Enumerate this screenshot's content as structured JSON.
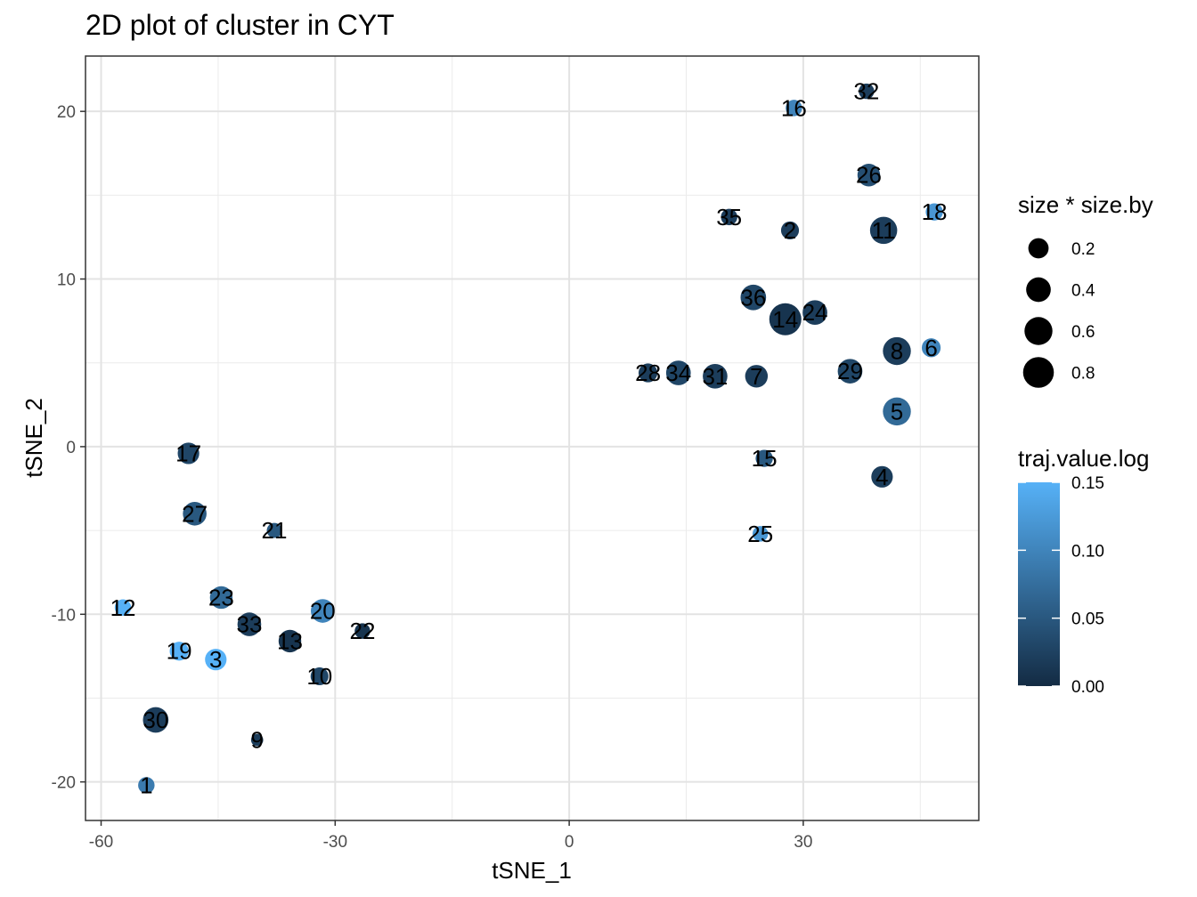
{
  "chart_data": {
    "type": "scatter",
    "title": "2D plot of cluster in CYT",
    "xlabel": "tSNE_1",
    "ylabel": "tSNE_2",
    "xlim": [
      -62,
      52.5
    ],
    "ylim": [
      -22.3,
      23.3
    ],
    "x_ticks": [
      -60,
      -30,
      0,
      30
    ],
    "y_ticks": [
      -20,
      -10,
      0,
      10,
      20
    ],
    "x_minor_ticks": [
      -45,
      -15,
      15,
      45
    ],
    "y_minor_ticks": [
      -15,
      -5,
      5,
      15
    ],
    "grid": true,
    "legend_position": "right",
    "color_scale": {
      "low": "#132B43",
      "high": "#56B1F7"
    },
    "size_legend": {
      "title": "size * size.by",
      "values": [
        0.2,
        0.4,
        0.6,
        0.8
      ],
      "labels": [
        "0.2",
        "0.4",
        "0.6",
        "0.8"
      ]
    },
    "color_legend": {
      "title": "traj.value.log",
      "min": 0,
      "max": 0.15,
      "values": [
        0,
        0.05,
        0.1,
        0.15
      ],
      "labels": [
        "0.00",
        "0.05",
        "0.10",
        "0.15"
      ]
    },
    "points": [
      {
        "label": "1",
        "x": -54.2,
        "y": -20.2,
        "size": 0.08,
        "color_value": 0.09
      },
      {
        "label": "2",
        "x": 28.3,
        "y": 12.9,
        "size": 0.12,
        "color_value": 0.02
      },
      {
        "label": "3",
        "x": -45.3,
        "y": -12.7,
        "size": 0.25,
        "color_value": 0.15
      },
      {
        "label": "4",
        "x": 40.1,
        "y": -1.8,
        "size": 0.25,
        "color_value": 0.02
      },
      {
        "label": "5",
        "x": 42.0,
        "y": 2.1,
        "size": 0.6,
        "color_value": 0.07
      },
      {
        "label": "6",
        "x": 46.4,
        "y": 5.9,
        "size": 0.15,
        "color_value": 0.1
      },
      {
        "label": "7",
        "x": 24.0,
        "y": 4.2,
        "size": 0.3,
        "color_value": 0.02
      },
      {
        "label": "8",
        "x": 42.0,
        "y": 5.7,
        "size": 0.6,
        "color_value": 0.02
      },
      {
        "label": "9",
        "x": -40.0,
        "y": -17.5,
        "size": 0.01,
        "color_value": 0.02
      },
      {
        "label": "10",
        "x": -32.0,
        "y": -13.7,
        "size": 0.12,
        "color_value": 0.03
      },
      {
        "label": "11",
        "x": 40.3,
        "y": 12.9,
        "size": 0.55,
        "color_value": 0.02
      },
      {
        "label": "12",
        "x": -57.2,
        "y": -9.6,
        "size": 0.08,
        "color_value": 0.15
      },
      {
        "label": "13",
        "x": -35.8,
        "y": -11.6,
        "size": 0.3,
        "color_value": 0.01
      },
      {
        "label": "14",
        "x": 27.7,
        "y": 7.6,
        "size": 0.9,
        "color_value": 0.01
      },
      {
        "label": "15",
        "x": 25.0,
        "y": -0.7,
        "size": 0.1,
        "color_value": 0.05
      },
      {
        "label": "16",
        "x": 28.8,
        "y": 20.2,
        "size": 0.08,
        "color_value": 0.1
      },
      {
        "label": "17",
        "x": -48.8,
        "y": -0.4,
        "size": 0.25,
        "color_value": 0.03
      },
      {
        "label": "18",
        "x": 46.8,
        "y": 14.0,
        "size": 0.1,
        "color_value": 0.12
      },
      {
        "label": "19",
        "x": -50.0,
        "y": -12.2,
        "size": 0.15,
        "color_value": 0.15
      },
      {
        "label": "20",
        "x": -31.6,
        "y": -9.8,
        "size": 0.35,
        "color_value": 0.1
      },
      {
        "label": "21",
        "x": -37.8,
        "y": -5.0,
        "size": 0.05,
        "color_value": 0.05
      },
      {
        "label": "22",
        "x": -26.5,
        "y": -11.0,
        "size": 0.06,
        "color_value": 0.01
      },
      {
        "label": "23",
        "x": -44.6,
        "y": -9.0,
        "size": 0.3,
        "color_value": 0.07
      },
      {
        "label": "24",
        "x": 31.5,
        "y": 8.0,
        "size": 0.4,
        "color_value": 0.02
      },
      {
        "label": "25",
        "x": 24.5,
        "y": -5.2,
        "size": 0.06,
        "color_value": 0.12
      },
      {
        "label": "26",
        "x": 38.4,
        "y": 16.2,
        "size": 0.3,
        "color_value": 0.04
      },
      {
        "label": "27",
        "x": -48.0,
        "y": -4.0,
        "size": 0.35,
        "color_value": 0.05
      },
      {
        "label": "28",
        "x": 10.1,
        "y": 4.4,
        "size": 0.15,
        "color_value": 0.02
      },
      {
        "label": "29",
        "x": 36.0,
        "y": 4.5,
        "size": 0.4,
        "color_value": 0.03
      },
      {
        "label": "30",
        "x": -53.0,
        "y": -16.3,
        "size": 0.45,
        "color_value": 0.02
      },
      {
        "label": "31",
        "x": 18.7,
        "y": 4.2,
        "size": 0.4,
        "color_value": 0.02
      },
      {
        "label": "32",
        "x": 38.1,
        "y": 21.2,
        "size": 0.06,
        "color_value": 0.02
      },
      {
        "label": "33",
        "x": -41.0,
        "y": -10.6,
        "size": 0.35,
        "color_value": 0.02
      },
      {
        "label": "34",
        "x": 14.0,
        "y": 4.4,
        "size": 0.4,
        "color_value": 0.03
      },
      {
        "label": "35",
        "x": 20.5,
        "y": 13.7,
        "size": 0.08,
        "color_value": 0.02
      },
      {
        "label": "36",
        "x": 23.6,
        "y": 8.9,
        "size": 0.45,
        "color_value": 0.03
      }
    ]
  }
}
